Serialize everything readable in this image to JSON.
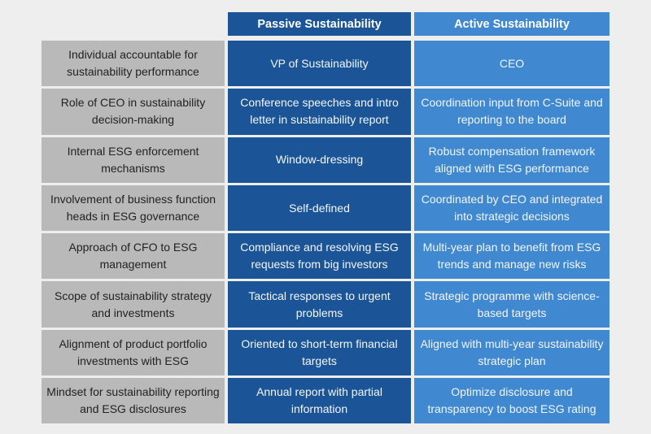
{
  "headers": {
    "passive": "Passive Sustainability",
    "active": "Active Sustainability"
  },
  "colors": {
    "background": "#eeeeee",
    "criteria": "#b9b9b9",
    "passive": "#1b5597",
    "active": "#4088cf"
  },
  "rows": [
    {
      "criterion": "Individual accountable for sustainability performance",
      "passive": "VP of Sustainability",
      "active": "CEO"
    },
    {
      "criterion": "Role of CEO in sustainability decision-making",
      "passive": "Conference speeches and intro letter in sustainability report",
      "active": "Coordination input from C-Suite and reporting to the board"
    },
    {
      "criterion": "Internal ESG enforcement mechanisms",
      "passive": "Window-dressing",
      "active": "Robust compensation framework aligned with ESG performance"
    },
    {
      "criterion": "Involvement of business function heads in ESG governance",
      "passive": "Self-defined",
      "active": "Coordinated by CEO and integrated into strategic decisions"
    },
    {
      "criterion": "Approach of CFO to ESG management",
      "passive": "Compliance and resolving ESG requests from big investors",
      "active": "Multi-year plan to benefit from ESG trends and manage new risks"
    },
    {
      "criterion": "Scope of sustainability strategy and investments",
      "passive": "Tactical responses to urgent problems",
      "active": "Strategic programme with science-based targets"
    },
    {
      "criterion": "Alignment of product portfolio investments with ESG",
      "passive": "Oriented to short-term financial targets",
      "active": "Aligned with multi-year sustainability strategic plan"
    },
    {
      "criterion": "Mindset for sustainability reporting and ESG disclosures",
      "passive": "Annual report with partial information",
      "active": "Optimize disclosure and transparency to boost ESG rating"
    }
  ]
}
